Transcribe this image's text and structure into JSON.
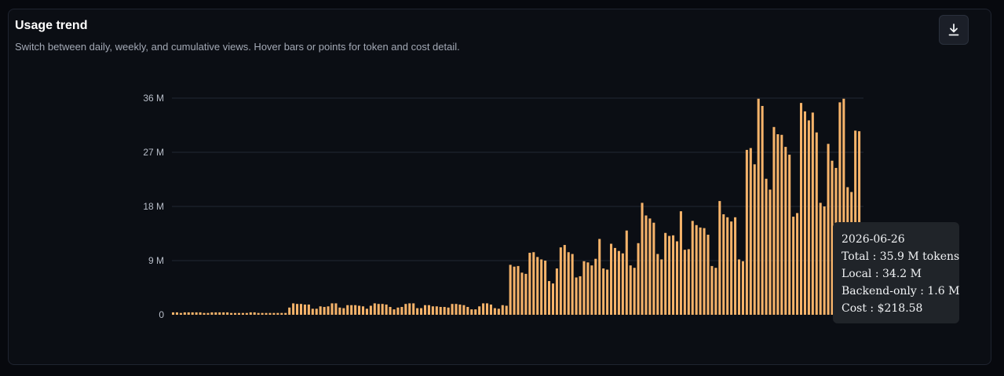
{
  "header": {
    "title": "Usage trend",
    "subtitle": "Switch between daily, weekly, and cumulative views. Hover bars or points for token and cost detail."
  },
  "toolbar": {
    "download_icon": "download-icon"
  },
  "colors": {
    "bar": "#f6b36a",
    "grid": "#222834",
    "card_bg": "#0b0e14",
    "tooltip_bg": "#202429"
  },
  "tooltip": {
    "date": "2026-06-26",
    "total": "Total : 35.9 M tokens",
    "local": "Local : 34.2 M",
    "backend": "Backend-only : 1.6 M",
    "cost": "Cost : $218.58"
  },
  "chart_data": {
    "type": "bar",
    "unit": "M tokens",
    "ylim": [
      0,
      36
    ],
    "yticks": [
      {
        "value": 0,
        "label": "0"
      },
      {
        "value": 9,
        "label": "9 M"
      },
      {
        "value": 18,
        "label": "18 M"
      },
      {
        "value": 27,
        "label": "27 M"
      },
      {
        "value": 36,
        "label": "36 M"
      }
    ],
    "grid": true,
    "values": [
      0.4,
      0.4,
      0.3,
      0.4,
      0.4,
      0.4,
      0.4,
      0.4,
      0.3,
      0.3,
      0.4,
      0.4,
      0.4,
      0.4,
      0.4,
      0.3,
      0.3,
      0.3,
      0.3,
      0.3,
      0.4,
      0.4,
      0.3,
      0.3,
      0.3,
      0.3,
      0.3,
      0.3,
      0.3,
      0.3,
      1.2,
      1.9,
      1.8,
      1.8,
      1.7,
      1.7,
      1.0,
      1.0,
      1.4,
      1.3,
      1.4,
      1.9,
      1.9,
      1.2,
      1.1,
      1.6,
      1.6,
      1.6,
      1.5,
      1.4,
      1.0,
      1.5,
      1.9,
      1.8,
      1.8,
      1.7,
      1.3,
      0.9,
      1.2,
      1.3,
      1.8,
      1.9,
      1.9,
      1.1,
      1.1,
      1.6,
      1.6,
      1.4,
      1.4,
      1.3,
      1.3,
      1.2,
      1.8,
      1.8,
      1.7,
      1.6,
      1.3,
      0.9,
      0.9,
      1.4,
      1.9,
      1.9,
      1.7,
      1.1,
      1.0,
      1.6,
      1.5,
      8.3,
      8.0,
      8.1,
      7.0,
      6.8,
      10.3,
      10.4,
      9.6,
      9.2,
      9.0,
      5.6,
      5.2,
      7.7,
      11.2,
      11.6,
      10.4,
      10.1,
      6.2,
      6.4,
      8.9,
      8.7,
      8.2,
      9.3,
      12.6,
      7.7,
      7.5,
      11.8,
      11.1,
      10.6,
      10.2,
      14.0,
      8.2,
      7.8,
      11.9,
      18.6,
      16.5,
      16.0,
      15.3,
      10.1,
      9.2,
      13.6,
      13.1,
      13.2,
      12.2,
      17.2,
      10.8,
      10.9,
      15.6,
      14.9,
      14.5,
      14.4,
      13.3,
      8.1,
      7.8,
      18.9,
      16.7,
      16.2,
      15.5,
      16.2,
      9.2,
      8.9,
      27.4,
      27.7,
      25.0,
      35.9,
      34.7,
      22.6,
      20.8,
      31.2,
      30.0,
      29.9,
      27.9,
      26.6,
      16.3,
      16.9,
      35.2,
      33.8,
      32.3,
      33.6,
      30.3,
      18.6,
      18.0,
      28.4,
      25.6,
      24.4,
      35.3,
      35.9,
      21.2,
      20.4,
      30.6,
      30.5
    ]
  }
}
